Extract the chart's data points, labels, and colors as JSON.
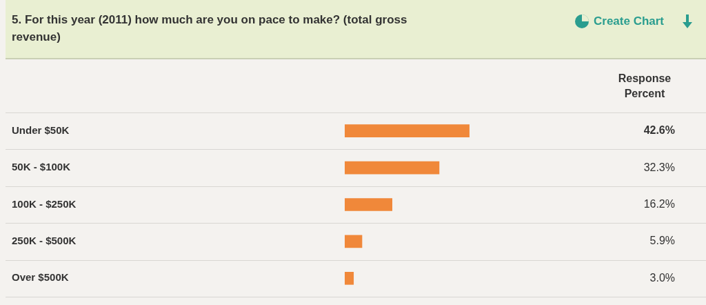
{
  "chart_data": {
    "type": "bar",
    "orientation": "horizontal",
    "title": "5. For this year (2011) how much are you on pace to make? (total gross revenue)",
    "annotations": [
      "Create Chart",
      "Response Percent"
    ],
    "categories": [
      "Under $50K",
      "50K - $100K",
      "100K - $250K",
      "250K - $500K",
      "Over $500K"
    ],
    "values": [
      42.6,
      32.3,
      16.2,
      5.9,
      3.0
    ],
    "value_labels": [
      "42.6%",
      "32.3%",
      "16.2%",
      "5.9%",
      "3.0%"
    ],
    "color": "#f0883a",
    "tick_labels": "y",
    "grid": "y",
    "legend": false
  }
}
